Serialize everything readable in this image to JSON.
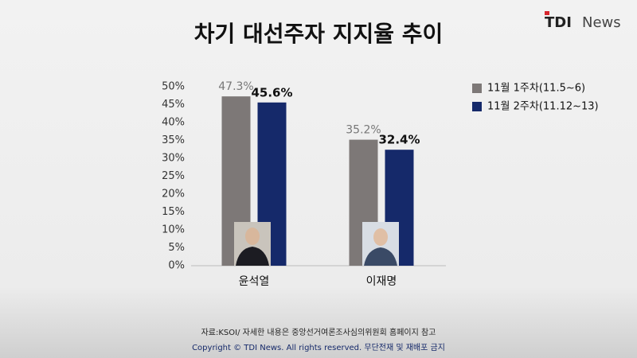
{
  "chart_data": {
    "type": "bar",
    "title": "차기 대선주자 지지율 추이",
    "logo": {
      "brand": "TDI",
      "name": "News"
    },
    "categories": [
      "윤석열",
      "이재명"
    ],
    "series": [
      {
        "name": "11월 1주차(11.5~6)",
        "color": "#7d7877",
        "values": [
          47.3,
          35.2
        ],
        "value_labels": [
          "47.3%",
          "35.2%"
        ]
      },
      {
        "name": "11월 2주차(11.12~13)",
        "color": "#15296a",
        "values": [
          45.6,
          32.4
        ],
        "value_labels": [
          "45.6%",
          "32.4%"
        ]
      }
    ],
    "ylim": [
      0,
      50
    ],
    "yticks": [
      {
        "value": 0,
        "label": "0%"
      },
      {
        "value": 5,
        "label": "5%"
      },
      {
        "value": 10,
        "label": "10%"
      },
      {
        "value": 15,
        "label": "15%"
      },
      {
        "value": 20,
        "label": "20%"
      },
      {
        "value": 25,
        "label": "25%"
      },
      {
        "value": 30,
        "label": "30%"
      },
      {
        "value": 35,
        "label": "35%"
      },
      {
        "value": 40,
        "label": "40%"
      },
      {
        "value": 45,
        "label": "45%"
      },
      {
        "value": 50,
        "label": "50%"
      }
    ],
    "grid": false,
    "legend": "right",
    "source": "자료:KSOI/ 자세한 내용은 중앙선거여론조사심의위원회 홈페이지 참고",
    "copyright": "Copyright © TDI News. All rights reserved. 무단전재 및 재배포 금지"
  }
}
